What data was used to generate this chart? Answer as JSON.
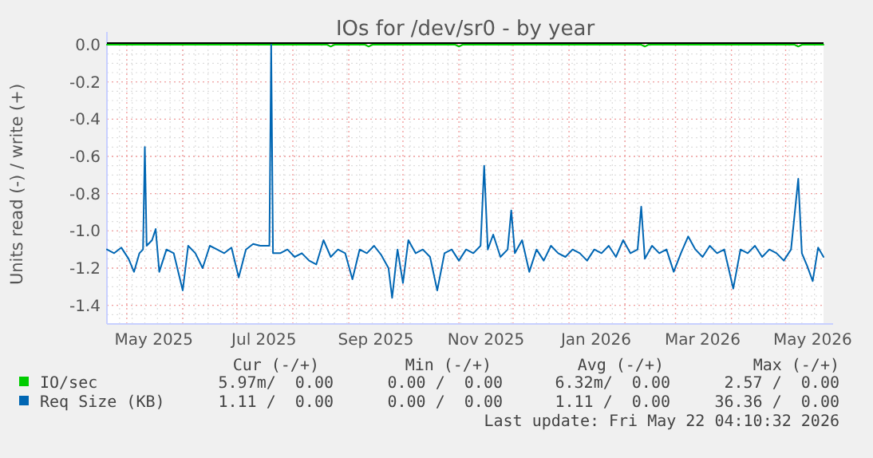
{
  "chart_data": {
    "type": "line",
    "title": "IOs for /dev/sr0 - by year",
    "ylabel": "Units read (-) / write (+)",
    "xlim": [
      "2025-04-20",
      "2026-05-22"
    ],
    "xticks": [
      {
        "value": "2025-05-16",
        "label": "May 2025"
      },
      {
        "value": "2025-07-16",
        "label": "Jul 2025"
      },
      {
        "value": "2025-09-16",
        "label": "Sep 2025"
      },
      {
        "value": "2025-11-16",
        "label": "Nov 2025"
      },
      {
        "value": "2026-01-16",
        "label": "Jan 2026"
      },
      {
        "value": "2026-03-16",
        "label": "Mar 2026"
      },
      {
        "value": "2026-05-16",
        "label": "May 2026"
      }
    ],
    "ylim": [
      -1.5,
      0
    ],
    "yticks": [
      {
        "value": 0,
        "label": "0.0"
      },
      {
        "value": -0.2,
        "label": "-0.2"
      },
      {
        "value": -0.4,
        "label": "-0.4"
      },
      {
        "value": -0.6,
        "label": "-0.6"
      },
      {
        "value": -0.8,
        "label": "-0.8"
      },
      {
        "value": -1,
        "label": "-1.0"
      },
      {
        "value": -1.2,
        "label": "-1.2"
      },
      {
        "value": -1.4,
        "label": "-1.4"
      }
    ],
    "grid": true,
    "legend": "bottom",
    "ref_lines": [
      {
        "axis": "y",
        "value": 0,
        "color": "#000000"
      }
    ],
    "series": [
      {
        "name": "IO/sec",
        "color": "#00cc00",
        "x": [
          "2025-04-20",
          "2025-08-20",
          "2025-08-22",
          "2025-08-24",
          "2025-09-10",
          "2025-09-12",
          "2025-09-14",
          "2025-10-30",
          "2025-11-01",
          "2025-11-03",
          "2026-02-10",
          "2026-02-12",
          "2026-02-14",
          "2026-05-06",
          "2026-05-08",
          "2026-05-10",
          "2026-05-22"
        ],
        "values": [
          0,
          0,
          -0.01,
          0,
          0,
          -0.01,
          0,
          0,
          -0.01,
          0,
          0,
          -0.01,
          0,
          0,
          -0.01,
          0,
          0
        ]
      },
      {
        "name": "Req Size (KB)",
        "color": "#0066b3",
        "x": [
          "2025-04-20",
          "2025-04-24",
          "2025-04-28",
          "2025-05-02",
          "2025-05-05",
          "2025-05-08",
          "2025-05-10",
          "2025-05-11",
          "2025-05-12",
          "2025-05-15",
          "2025-05-17",
          "2025-05-19",
          "2025-05-23",
          "2025-05-27",
          "2025-06-01",
          "2025-06-04",
          "2025-06-08",
          "2025-06-12",
          "2025-06-16",
          "2025-06-20",
          "2025-06-24",
          "2025-06-28",
          "2025-07-02",
          "2025-07-06",
          "2025-07-10",
          "2025-07-14",
          "2025-07-19",
          "2025-07-20",
          "2025-07-21",
          "2025-07-25",
          "2025-07-29",
          "2025-08-02",
          "2025-08-06",
          "2025-08-10",
          "2025-08-14",
          "2025-08-18",
          "2025-08-22",
          "2025-08-26",
          "2025-08-30",
          "2025-09-03",
          "2025-09-07",
          "2025-09-11",
          "2025-09-15",
          "2025-09-19",
          "2025-09-23",
          "2025-09-25",
          "2025-09-28",
          "2025-10-01",
          "2025-10-04",
          "2025-10-08",
          "2025-10-12",
          "2025-10-16",
          "2025-10-20",
          "2025-10-24",
          "2025-10-28",
          "2025-11-01",
          "2025-11-05",
          "2025-11-09",
          "2025-11-13",
          "2025-11-15",
          "2025-11-17",
          "2025-11-20",
          "2025-11-24",
          "2025-11-28",
          "2025-11-30",
          "2025-12-02",
          "2025-12-06",
          "2025-12-10",
          "2025-12-14",
          "2025-12-18",
          "2025-12-22",
          "2025-12-26",
          "2025-12-30",
          "2026-01-03",
          "2026-01-07",
          "2026-01-11",
          "2026-01-15",
          "2026-01-19",
          "2026-01-23",
          "2026-01-27",
          "2026-01-31",
          "2026-02-04",
          "2026-02-08",
          "2026-02-10",
          "2026-02-12",
          "2026-02-16",
          "2026-02-20",
          "2026-02-24",
          "2026-02-28",
          "2026-03-04",
          "2026-03-08",
          "2026-03-12",
          "2026-03-16",
          "2026-03-20",
          "2026-03-24",
          "2026-03-28",
          "2026-04-02",
          "2026-04-06",
          "2026-04-10",
          "2026-04-14",
          "2026-04-18",
          "2026-04-22",
          "2026-04-26",
          "2026-04-30",
          "2026-05-04",
          "2026-05-08",
          "2026-05-10",
          "2026-05-13",
          "2026-05-16",
          "2026-05-19",
          "2026-05-22"
        ],
        "values": [
          -1.1,
          -1.12,
          -1.09,
          -1.15,
          -1.22,
          -1.12,
          -1.1,
          -0.55,
          -1.08,
          -1.05,
          -0.99,
          -1.22,
          -1.1,
          -1.12,
          -1.32,
          -1.08,
          -1.12,
          -1.2,
          -1.08,
          -1.1,
          -1.12,
          -1.09,
          -1.25,
          -1.1,
          -1.07,
          -1.08,
          -1.08,
          0.0,
          -1.12,
          -1.12,
          -1.1,
          -1.14,
          -1.12,
          -1.16,
          -1.18,
          -1.05,
          -1.14,
          -1.1,
          -1.12,
          -1.26,
          -1.1,
          -1.12,
          -1.08,
          -1.13,
          -1.2,
          -1.36,
          -1.1,
          -1.28,
          -1.05,
          -1.12,
          -1.1,
          -1.14,
          -1.32,
          -1.12,
          -1.1,
          -1.16,
          -1.1,
          -1.12,
          -1.08,
          -0.65,
          -1.1,
          -1.02,
          -1.14,
          -1.1,
          -0.89,
          -1.12,
          -1.05,
          -1.22,
          -1.1,
          -1.16,
          -1.08,
          -1.12,
          -1.14,
          -1.1,
          -1.12,
          -1.16,
          -1.1,
          -1.12,
          -1.08,
          -1.14,
          -1.05,
          -1.12,
          -1.1,
          -0.87,
          -1.15,
          -1.08,
          -1.12,
          -1.1,
          -1.22,
          -1.12,
          -1.03,
          -1.1,
          -1.14,
          -1.08,
          -1.12,
          -1.1,
          -1.31,
          -1.1,
          -1.12,
          -1.08,
          -1.14,
          -1.1,
          -1.12,
          -1.16,
          -1.1,
          -0.72,
          -1.12,
          -1.19,
          -1.27,
          -1.09,
          -1.14
        ]
      }
    ],
    "annotations": [
      "Cur (-/+)",
      "Min (-/+)",
      "Avg (-/+)",
      "Max (-/+)",
      "5.97m/  0.00",
      "0.00 /  0.00",
      "6.32m/  0.00",
      "2.57 /  0.00",
      "1.11 /  0.00",
      "0.00 /  0.00",
      "1.11 /  0.00",
      "36.36 /  0.00",
      "Last update: Fri May 22 04:10:32 2026"
    ]
  }
}
